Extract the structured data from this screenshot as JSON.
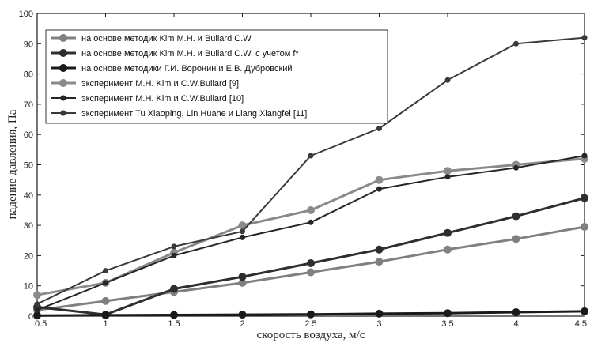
{
  "chart_data": {
    "type": "line",
    "title": "",
    "xlabel": "скорость воздуха, м/с",
    "ylabel": "падение давления, Па",
    "xlim": [
      0.5,
      4.5
    ],
    "ylim": [
      0,
      100
    ],
    "xticks": [
      0.5,
      1,
      1.5,
      2,
      2.5,
      3,
      3.5,
      4,
      4.5
    ],
    "yticks": [
      0,
      10,
      20,
      30,
      40,
      50,
      60,
      70,
      80,
      90,
      100
    ],
    "xtick_labels": [
      "0.5",
      "1",
      "1.5",
      "2",
      "2.5",
      "3",
      "3.5",
      "4",
      "4.5"
    ],
    "ytick_labels": [
      "0",
      "10",
      "20",
      "30",
      "40",
      "50",
      "60",
      "70",
      "80",
      "90",
      "100"
    ],
    "grid": false,
    "legend_position": "top-left",
    "series": [
      {
        "name": "на основе методик Kim M.H. и Bullard C.W.",
        "color": "#808080",
        "marker": "circle-large",
        "x": [
          0.5,
          1,
          1.5,
          2,
          2.5,
          3,
          3.5,
          4,
          4.5
        ],
        "y": [
          2,
          5,
          8,
          11,
          14.5,
          18,
          22,
          25.5,
          29.5
        ]
      },
      {
        "name": "на основе методик Kim M.H. и Bullard C.W. с учетом f*",
        "color": "#2e2e2e",
        "marker": "circle-large",
        "x": [
          0.5,
          1,
          1.5,
          2,
          2.5,
          3,
          3.5,
          4,
          4.5
        ],
        "y": [
          3,
          0.5,
          9,
          13,
          17.5,
          22,
          27.5,
          33,
          39
        ]
      },
      {
        "name": "на основе методики Г.И. Воронин и Е.В. Дубровский",
        "color": "#1a1a1a",
        "marker": "circle-large",
        "x": [
          0.5,
          1,
          1.5,
          2,
          2.5,
          3,
          3.5,
          4,
          4.5
        ],
        "y": [
          0.2,
          0.3,
          0.4,
          0.5,
          0.6,
          0.8,
          1,
          1.3,
          1.6
        ]
      },
      {
        "name": "эксперимент M.H. Kim и C.W.Bullard [9]",
        "color": "#8a8a8a",
        "marker": "circle-large",
        "x": [
          0.5,
          1,
          1.5,
          2,
          2.5,
          3,
          3.5,
          4,
          4.5
        ],
        "y": [
          7,
          11,
          21,
          30,
          35,
          45,
          48,
          50,
          52
        ]
      },
      {
        "name": "эксперимент M.H. Kim и C.W.Bullard [10]",
        "color": "#262626",
        "marker": "circle-small",
        "x": [
          0.5,
          1,
          1.5,
          2,
          2.5,
          3,
          3.5,
          4,
          4.5
        ],
        "y": [
          2,
          11,
          20,
          26,
          31,
          42,
          46,
          49,
          53
        ]
      },
      {
        "name": "эксперимент Tu Xiaoping, Lin Huahe и Liang Xiangfei [11]",
        "color": "#3a3a3a",
        "marker": "circle-small",
        "x": [
          0.5,
          1,
          1.5,
          2,
          2.5,
          3,
          3.5,
          4,
          4.5
        ],
        "y": [
          4,
          15,
          23,
          28,
          53,
          62,
          78,
          90,
          92
        ]
      }
    ]
  }
}
